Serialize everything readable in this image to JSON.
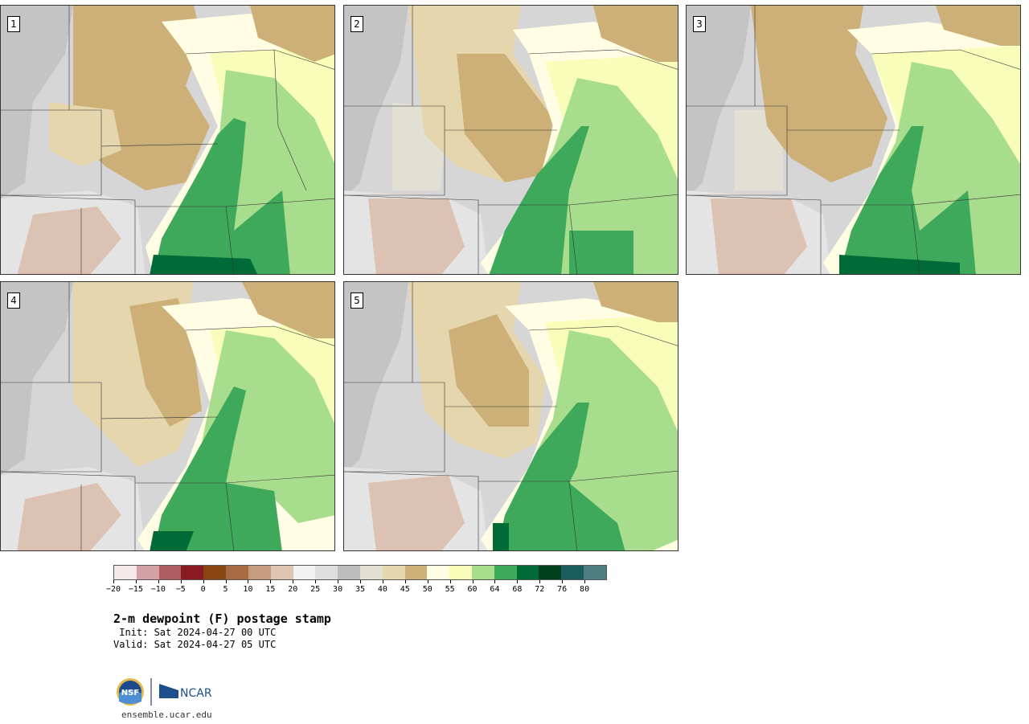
{
  "panels": [
    {
      "label": "1"
    },
    {
      "label": "2"
    },
    {
      "label": "3"
    },
    {
      "label": "4"
    },
    {
      "label": "5"
    }
  ],
  "colorbar": {
    "ticks": [
      "−20",
      "−15",
      "−10",
      "−5",
      "0",
      "5",
      "10",
      "15",
      "20",
      "25",
      "30",
      "35",
      "40",
      "45",
      "50",
      "55",
      "60",
      "64",
      "68",
      "72",
      "76",
      "80"
    ],
    "colors": [
      "#f4e9ea",
      "#d4a0a7",
      "#b05c63",
      "#8a1a22",
      "#8a4512",
      "#a86c44",
      "#c59a7f",
      "#e0c4b4",
      "#f2f2f2",
      "#dedede",
      "#bdbdbd",
      "#e1e0d3",
      "#e6d6ad",
      "#cdb078",
      "#fffde3",
      "#f8fdb9",
      "#a9dd8e",
      "#3fa95b",
      "#006b36",
      "#00401c",
      "#1b5c5c",
      "#507f83"
    ]
  },
  "title": "2-m dewpoint (F) postage stamp",
  "init": " Init: Sat 2024-04-27 00 UTC",
  "valid": "Valid: Sat 2024-04-27 05 UTC",
  "site": "ensemble.ucar.edu",
  "logos": {
    "nsf": "NSF",
    "ncar": "NCAR"
  }
}
